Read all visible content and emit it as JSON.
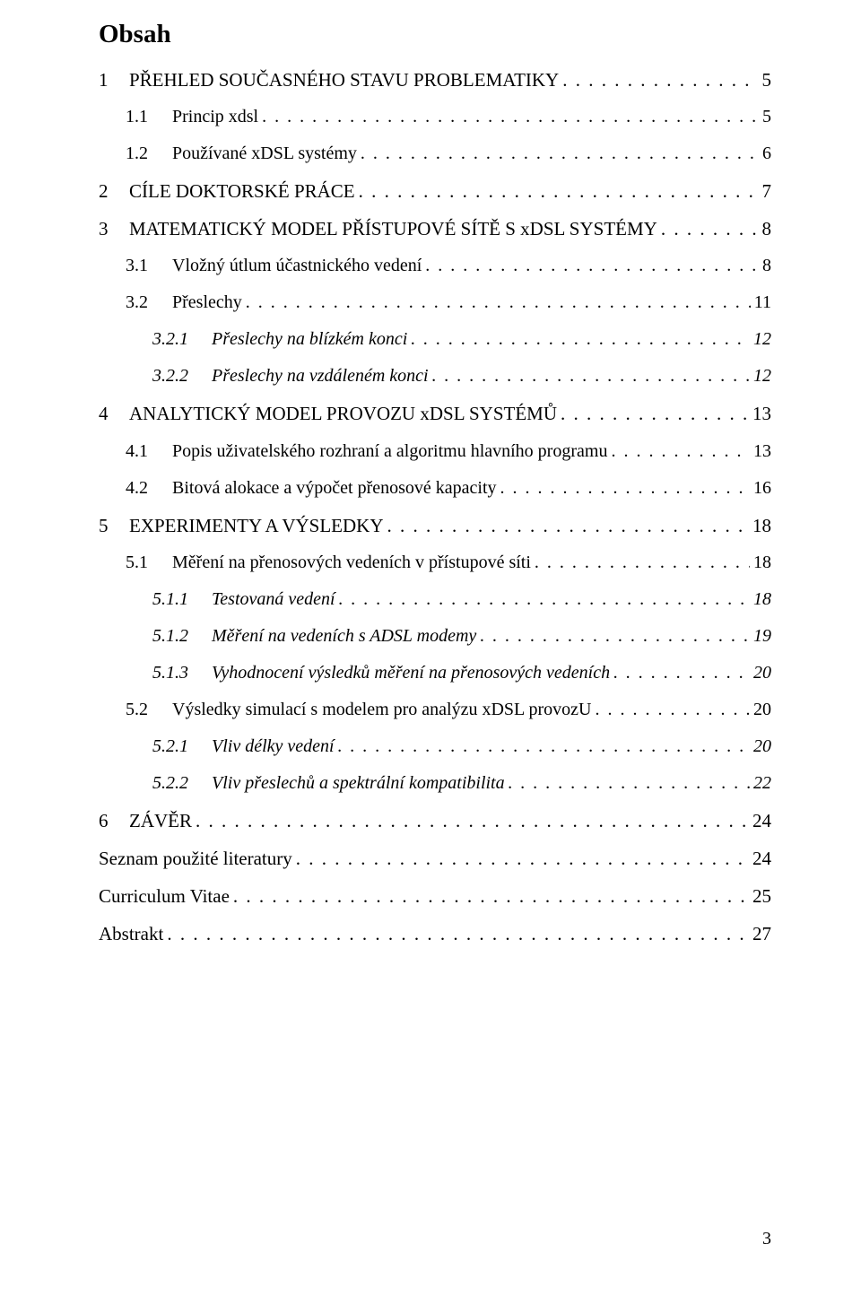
{
  "heading": "Obsah",
  "page_number": "3",
  "background_color": "#ffffff",
  "text_color": "#000000",
  "font_family": "Times New Roman",
  "base_fontsize_pt": 15,
  "entries": [
    {
      "level": 1,
      "num": "1",
      "title": "PŘEHLED SOUČASNÉHO STAVU PROBLEMATIKY",
      "page": "5"
    },
    {
      "level": 2,
      "num": "1.1",
      "title": "Princip xdsl",
      "page": "5"
    },
    {
      "level": 2,
      "num": "1.2",
      "title": "Používané xDSL systémy",
      "page": "6"
    },
    {
      "level": 1,
      "num": "2",
      "title": "CÍLE DOKTORSKÉ PRÁCE",
      "page": "7"
    },
    {
      "level": 1,
      "num": "3",
      "title": "MATEMATICKÝ MODEL PŘÍSTUPOVÉ SÍTĚ S xDSL SYSTÉMY",
      "page": "8"
    },
    {
      "level": 2,
      "num": "3.1",
      "title": "Vložný útlum účastnického vedení",
      "page": "8"
    },
    {
      "level": 2,
      "num": "3.2",
      "title": "Přeslechy",
      "page": "11"
    },
    {
      "level": 3,
      "num": "3.2.1",
      "title": "Přeslechy na blízkém konci",
      "page": "12"
    },
    {
      "level": 3,
      "num": "3.2.2",
      "title": "Přeslechy na vzdáleném konci",
      "page": "12"
    },
    {
      "level": 1,
      "num": "4",
      "title": "ANALYTICKÝ MODEL PROVOZU xDSL SYSTÉMŮ",
      "page": "13"
    },
    {
      "level": 2,
      "num": "4.1",
      "title": "Popis uživatelského rozhraní a algoritmu hlavního programu",
      "page": "13"
    },
    {
      "level": 2,
      "num": "4.2",
      "title": "Bitová alokace a výpočet přenosové kapacity",
      "page": "16"
    },
    {
      "level": 1,
      "num": "5",
      "title": "EXPERIMENTY A VÝSLEDKY",
      "page": "18"
    },
    {
      "level": 2,
      "num": "5.1",
      "title": "Měření na přenosových vedeních v přístupové síti",
      "page": "18"
    },
    {
      "level": 3,
      "num": "5.1.1",
      "title": "Testovaná vedení",
      "page": "18"
    },
    {
      "level": 3,
      "num": "5.1.2",
      "title": "Měření na vedeních s ADSL modemy",
      "page": "19"
    },
    {
      "level": 3,
      "num": "5.1.3",
      "title": "Vyhodnocení výsledků měření na přenosových vedeních",
      "page": "20"
    },
    {
      "level": 2,
      "num": "5.2",
      "title": "Výsledky simulací s modelem pro analýzu xDSL provozU",
      "page": "20"
    },
    {
      "level": 3,
      "num": "5.2.1",
      "title": "Vliv délky vedení",
      "page": "20"
    },
    {
      "level": 3,
      "num": "5.2.2",
      "title": "Vliv přeslechů a spektrální kompatibilita",
      "page": "22"
    },
    {
      "level": 1,
      "num": "6",
      "title": "ZÁVĚR",
      "page": "24"
    },
    {
      "level": 1,
      "num": "",
      "title": "Seznam použité literatury",
      "page": "24"
    },
    {
      "level": 1,
      "num": "",
      "title": "Curriculum Vitae",
      "page": "25"
    },
    {
      "level": 1,
      "num": "",
      "title": "Abstrakt",
      "page": "27"
    }
  ]
}
